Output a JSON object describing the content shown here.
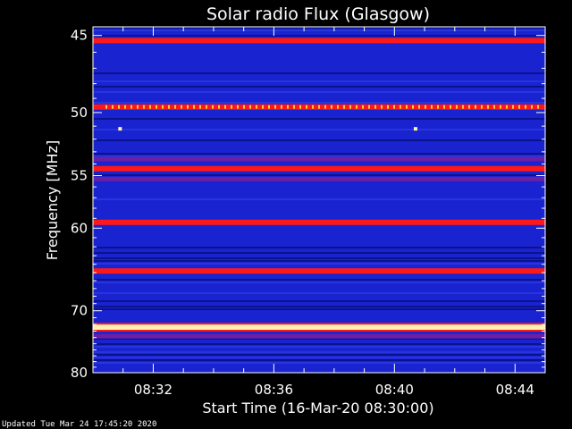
{
  "chart_data": {
    "type": "heatmap",
    "title": "Solar radio Flux (Glasgow)",
    "xlabel": "Start Time (16-Mar-20 08:30:00)",
    "ylabel": "Frequency [MHz]",
    "x_ticks": [
      "08:32",
      "08:36",
      "08:40",
      "08:44"
    ],
    "x_tick_minutes": [
      2,
      6,
      10,
      14
    ],
    "x_range_minutes": [
      0,
      15
    ],
    "y_ticks": [
      45,
      50,
      55,
      60,
      70,
      80
    ],
    "y_scale": "reciprocal",
    "y_range_mhz": [
      44.5,
      80
    ],
    "colors": {
      "background": "#000000",
      "base": "#1a23d0",
      "dark": "#060c70",
      "mid": "#6a1fa6",
      "red": "#ff1818",
      "hot": "#fff1b0"
    },
    "bands": [
      {
        "mhz": 45.3,
        "level": "red"
      },
      {
        "mhz": 49.6,
        "level": "red"
      },
      {
        "mhz": 53.6,
        "level": "mid"
      },
      {
        "mhz": 54.4,
        "level": "red"
      },
      {
        "mhz": 55.3,
        "level": "mid"
      },
      {
        "mhz": 59.4,
        "level": "red"
      },
      {
        "mhz": 64.8,
        "level": "red"
      },
      {
        "mhz": 72.4,
        "level": "hot"
      },
      {
        "mhz": 73.8,
        "level": "mid"
      }
    ],
    "bursts": [
      {
        "minute": 0.9,
        "mhz": 51.2
      },
      {
        "minute": 10.7,
        "mhz": 51.2
      }
    ],
    "annotation": "Updated Tue Mar 24 17:45:20 2020"
  }
}
